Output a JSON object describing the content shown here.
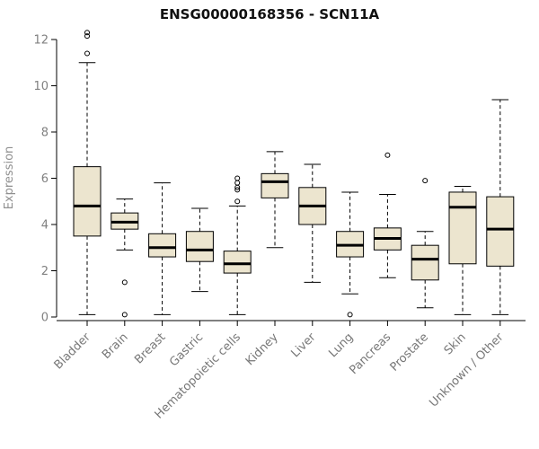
{
  "chart_data": {
    "type": "boxplot",
    "title": "ENSG00000168356 - SCN11A",
    "ylabel": "Expression",
    "ylim": [
      0,
      12
    ],
    "yticks": [
      0,
      2,
      4,
      6,
      8,
      10,
      12
    ],
    "grid": false,
    "legend": "none",
    "colors": {
      "box_fill": "#ECE5CF",
      "box_stroke": "#000000",
      "median": "#000000",
      "axis": "#000000",
      "tick_label": "#808080",
      "category_label": "#777777",
      "title": "#111111",
      "ylabel": "#909090"
    },
    "categories": [
      "Bladder",
      "Brain",
      "Breast",
      "Gastric",
      "Hematopoietic cells",
      "Kidney",
      "Liver",
      "Lung",
      "Pancreas",
      "Prostate",
      "Skin",
      "Unknown / Other"
    ],
    "boxes": [
      {
        "label": "Bladder",
        "whisker_low": 0.1,
        "q1": 3.5,
        "median": 4.8,
        "q3": 6.5,
        "whisker_high": 11.0,
        "outliers": [
          11.4,
          12.15,
          12.3
        ]
      },
      {
        "label": "Brain",
        "whisker_low": 2.9,
        "q1": 3.8,
        "median": 4.1,
        "q3": 4.5,
        "whisker_high": 5.1,
        "outliers": [
          1.5,
          0.1
        ]
      },
      {
        "label": "Breast",
        "whisker_low": 0.1,
        "q1": 2.6,
        "median": 3.0,
        "q3": 3.6,
        "whisker_high": 5.8,
        "outliers": []
      },
      {
        "label": "Gastric",
        "whisker_low": 1.1,
        "q1": 2.4,
        "median": 2.9,
        "q3": 3.7,
        "whisker_high": 4.7,
        "outliers": []
      },
      {
        "label": "Hematopoietic cells",
        "whisker_low": 0.1,
        "q1": 1.9,
        "median": 2.3,
        "q3": 2.85,
        "whisker_high": 4.8,
        "outliers": [
          5.0,
          5.5,
          5.6,
          5.8,
          6.0
        ]
      },
      {
        "label": "Kidney",
        "whisker_low": 3.0,
        "q1": 5.15,
        "median": 5.85,
        "q3": 6.2,
        "whisker_high": 7.15,
        "outliers": []
      },
      {
        "label": "Liver",
        "whisker_low": 1.5,
        "q1": 4.0,
        "median": 4.8,
        "q3": 5.6,
        "whisker_high": 6.6,
        "outliers": []
      },
      {
        "label": "Lung",
        "whisker_low": 1.0,
        "q1": 2.6,
        "median": 3.1,
        "q3": 3.7,
        "whisker_high": 5.4,
        "outliers": [
          0.1
        ]
      },
      {
        "label": "Pancreas",
        "whisker_low": 1.7,
        "q1": 2.9,
        "median": 3.4,
        "q3": 3.85,
        "whisker_high": 5.3,
        "outliers": [
          7.0
        ]
      },
      {
        "label": "Prostate",
        "whisker_low": 0.4,
        "q1": 1.6,
        "median": 2.5,
        "q3": 3.1,
        "whisker_high": 3.7,
        "outliers": [
          5.9
        ]
      },
      {
        "label": "Skin",
        "whisker_low": 0.1,
        "q1": 2.3,
        "median": 4.75,
        "q3": 5.4,
        "whisker_high": 5.65,
        "outliers": []
      },
      {
        "label": "Unknown / Other",
        "whisker_low": 0.1,
        "q1": 2.2,
        "median": 3.8,
        "q3": 5.2,
        "whisker_high": 9.4,
        "outliers": []
      }
    ]
  }
}
